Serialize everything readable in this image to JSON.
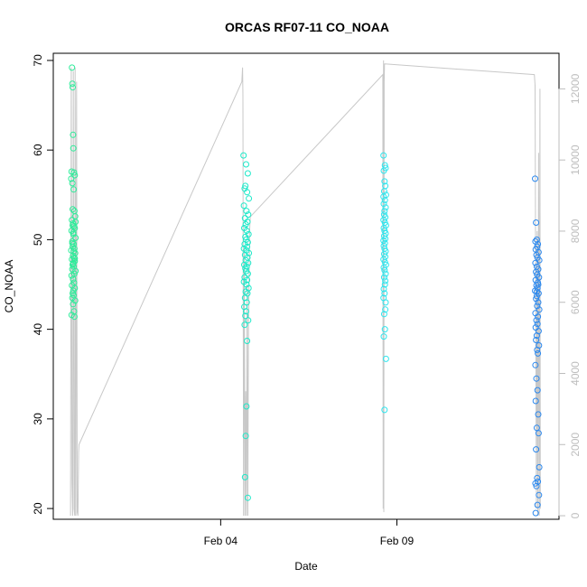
{
  "chart_data": {
    "type": "scatter",
    "title": "ORCAS RF07-11 CO_NOAA",
    "xlabel": "Date",
    "ylabel": "CO_NOAA",
    "x_ticks": [
      {
        "label": "Feb 04",
        "day": 34
      },
      {
        "label": "Feb 09",
        "day": 39
      }
    ],
    "xlim_days": [
      29.25,
      43.6
    ],
    "ylim": [
      18.8,
      70.8
    ],
    "y_ticks": [
      20,
      30,
      40,
      50,
      60,
      70
    ],
    "y2lim": [
      -100,
      13000
    ],
    "y2_ticks": [
      0,
      2000,
      4000,
      6000,
      8000,
      10000,
      12000
    ],
    "right_axis_color": "#bdbdbd",
    "altitude_line_color": "#c8c8c8",
    "grid": false,
    "legend": "none",
    "altitude_track": [
      [
        29.74,
        0
      ],
      [
        29.76,
        12600
      ],
      [
        29.78,
        1000
      ],
      [
        29.8,
        0
      ],
      [
        29.82,
        12500
      ],
      [
        29.84,
        200
      ],
      [
        29.86,
        0
      ],
      [
        29.87,
        12600
      ],
      [
        29.89,
        0
      ],
      [
        29.91,
        12200
      ],
      [
        29.93,
        100
      ],
      [
        29.95,
        0
      ],
      [
        29.97,
        1800
      ],
      [
        29.98,
        2000
      ],
      [
        34.6,
        12200
      ],
      [
        34.62,
        12600
      ],
      [
        34.63,
        11800
      ],
      [
        34.65,
        0
      ],
      [
        34.67,
        7500
      ],
      [
        34.69,
        0
      ],
      [
        34.71,
        3500
      ],
      [
        34.73,
        0
      ],
      [
        34.75,
        6500
      ],
      [
        34.77,
        0
      ],
      [
        34.79,
        5500
      ],
      [
        34.81,
        7000
      ],
      [
        34.82,
        8000
      ],
      [
        34.84,
        8400
      ],
      [
        38.6,
        12400
      ],
      [
        38.61,
        200
      ],
      [
        38.62,
        12800
      ],
      [
        38.63,
        100
      ],
      [
        38.64,
        12200
      ],
      [
        38.65,
        12700
      ],
      [
        38.66,
        12700
      ],
      [
        42.9,
        12400
      ],
      [
        42.92,
        12100
      ],
      [
        42.94,
        6000
      ],
      [
        42.96,
        200
      ],
      [
        42.98,
        8000
      ],
      [
        43.0,
        0
      ],
      [
        43.02,
        10200
      ],
      [
        43.04,
        0
      ],
      [
        43.06,
        12000
      ],
      [
        43.07,
        200
      ]
    ],
    "series": [
      {
        "color": "#2eec9a",
        "x": [
          29.78,
          29.79,
          29.8,
          29.81,
          29.82,
          29.77,
          29.84,
          29.86,
          29.76,
          29.79,
          29.83,
          29.8,
          29.85,
          29.87,
          29.78,
          29.81,
          29.84,
          29.86,
          29.77,
          29.82,
          29.88,
          29.79,
          29.83,
          29.8,
          29.85,
          29.76,
          29.87,
          29.81,
          29.84,
          29.78,
          29.86,
          29.82,
          29.8,
          29.83,
          29.79,
          29.88,
          29.85,
          29.77,
          29.81,
          29.84,
          29.78,
          29.86,
          29.82,
          29.8,
          29.83,
          29.79,
          29.87,
          29.81,
          29.84,
          29.77,
          29.85,
          29.88,
          29.8,
          29.82,
          29.79,
          29.83,
          29.86,
          29.81
        ],
        "y": [
          69.2,
          67.4,
          67.0,
          61.7,
          60.2,
          57.6,
          57.5,
          57.2,
          56.8,
          56.3,
          55.6,
          53.4,
          53.2,
          52.6,
          52.2,
          51.8,
          51.5,
          51.3,
          51.0,
          50.6,
          50.2,
          49.8,
          49.5,
          49.2,
          49.0,
          48.8,
          48.5,
          48.2,
          48.0,
          47.8,
          47.6,
          47.4,
          47.2,
          47.0,
          46.7,
          46.5,
          46.2,
          46.0,
          45.6,
          45.2,
          44.9,
          44.6,
          44.3,
          44.0,
          43.8,
          43.5,
          43.2,
          42.8,
          42.0,
          41.6,
          41.4,
          52.0,
          51.6,
          50.8,
          49.6,
          48.7,
          47.9,
          47.3
        ]
      },
      {
        "color": "#1de9c9",
        "x": [
          34.65,
          34.72,
          34.77,
          34.7,
          34.68,
          34.75,
          34.8,
          34.66,
          34.73,
          34.78,
          34.69,
          34.76,
          34.71,
          34.67,
          34.74,
          34.79,
          34.7,
          34.72,
          34.77,
          34.68,
          34.75,
          34.66,
          34.73,
          34.8,
          34.69,
          34.76,
          34.71,
          34.78,
          34.67,
          34.74,
          34.7,
          34.72,
          34.77,
          34.68,
          34.75,
          34.66,
          34.73,
          34.79,
          34.71,
          34.76,
          34.69,
          34.74,
          34.67,
          34.72,
          34.7,
          34.78,
          34.68,
          34.75,
          34.73,
          34.71,
          34.69,
          34.77
        ],
        "y": [
          59.4,
          58.4,
          57.4,
          56.0,
          55.7,
          55.3,
          54.6,
          53.8,
          53.2,
          52.8,
          52.4,
          52.0,
          51.7,
          51.3,
          51.0,
          50.6,
          50.3,
          50.0,
          49.7,
          49.5,
          49.2,
          49.0,
          48.8,
          48.5,
          48.3,
          48.0,
          47.7,
          47.4,
          47.2,
          47.0,
          46.8,
          46.5,
          46.2,
          45.8,
          45.5,
          45.3,
          45.0,
          44.6,
          44.2,
          44.0,
          43.5,
          43.0,
          42.5,
          42.0,
          41.5,
          41.0,
          40.5,
          38.7,
          31.4,
          28.1,
          23.5,
          21.2
        ]
      },
      {
        "color": "#2ee6ee",
        "x": [
          38.62,
          38.66,
          38.68,
          38.63,
          38.65,
          38.67,
          38.64,
          38.69,
          38.62,
          38.66,
          38.63,
          38.68,
          38.65,
          38.64,
          38.67,
          38.62,
          38.66,
          38.69,
          38.63,
          38.65,
          38.68,
          38.64,
          38.67,
          38.62,
          38.66,
          38.63,
          38.65,
          38.68,
          38.64,
          38.67,
          38.62,
          38.66,
          38.69,
          38.63,
          38.65,
          38.68,
          38.64,
          38.67,
          38.66,
          38.63,
          38.65,
          38.62,
          38.68,
          38.67,
          38.64,
          38.66,
          38.63,
          38.69,
          38.65
        ],
        "y": [
          59.4,
          58.3,
          58.0,
          57.7,
          56.5,
          56.0,
          55.4,
          55.0,
          54.8,
          54.4,
          54.0,
          53.6,
          53.2,
          52.8,
          52.5,
          52.2,
          51.9,
          51.6,
          51.3,
          51.0,
          50.7,
          50.4,
          50.1,
          49.9,
          49.6,
          49.3,
          49.0,
          48.7,
          48.4,
          48.1,
          47.8,
          47.5,
          47.2,
          46.9,
          46.6,
          46.2,
          45.8,
          45.4,
          45.0,
          44.5,
          44.0,
          43.5,
          43.0,
          42.2,
          41.7,
          40.0,
          39.2,
          36.7,
          31.0
        ]
      },
      {
        "color": "#2b88ee",
        "x": [
          42.92,
          42.95,
          42.97,
          42.93,
          43.0,
          42.98,
          42.94,
          43.02,
          42.96,
          42.99,
          43.04,
          42.93,
          42.97,
          43.01,
          42.95,
          42.98,
          43.03,
          42.94,
          43.0,
          42.96,
          42.99,
          42.92,
          43.02,
          42.97,
          42.95,
          43.01,
          42.98,
          43.04,
          42.93,
          43.0,
          42.96,
          42.99,
          42.94,
          43.02,
          42.97,
          42.95,
          43.03,
          42.98,
          43.0,
          42.93,
          42.96,
          42.99,
          42.94,
          43.01,
          42.97,
          43.02,
          42.95,
          43.04,
          42.98,
          43.0,
          42.93,
          42.96,
          43.03,
          42.99,
          42.94,
          43.01,
          42.97
        ],
        "y": [
          56.8,
          51.9,
          50.0,
          49.8,
          49.5,
          49.2,
          48.9,
          48.6,
          48.3,
          48.0,
          47.7,
          47.4,
          47.0,
          46.7,
          46.4,
          46.1,
          45.8,
          45.5,
          45.2,
          44.9,
          44.6,
          44.3,
          44.0,
          43.7,
          43.4,
          43.0,
          42.6,
          42.2,
          41.8,
          41.4,
          41.0,
          40.6,
          40.2,
          39.8,
          39.3,
          38.8,
          38.2,
          37.7,
          37.3,
          36.0,
          34.5,
          33.2,
          32.0,
          30.5,
          29.0,
          28.4,
          26.6,
          24.6,
          23.4,
          23.0,
          22.8,
          22.5,
          21.5,
          20.4,
          19.5,
          45.0,
          44.2
        ]
      }
    ]
  }
}
